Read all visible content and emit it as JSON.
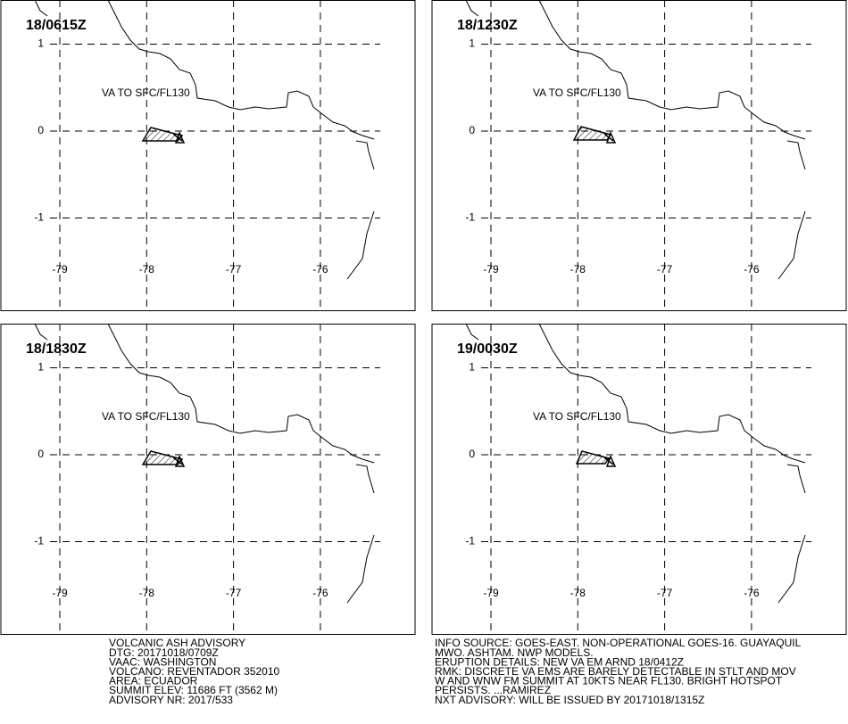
{
  "panels": [
    {
      "time": "18/0615Z",
      "annotation": "VA TO SFC/FL130",
      "lon_ticks": [
        -79,
        -78,
        -77,
        -76
      ],
      "lat_ticks": [
        1,
        0,
        -1
      ]
    },
    {
      "time": "18/1230Z",
      "annotation": "VA TO SFC/FL130",
      "lon_ticks": [
        -79,
        -78,
        -77,
        -76
      ],
      "lat_ticks": [
        1,
        0,
        -1
      ]
    },
    {
      "time": "18/1830Z",
      "annotation": "VA TO SFC/FL130",
      "lon_ticks": [
        -79,
        -78,
        -77,
        -76
      ],
      "lat_ticks": [
        1,
        0,
        -1
      ]
    },
    {
      "time": "19/0030Z",
      "annotation": "VA TO SFC/FL130",
      "lon_ticks": [
        -79,
        -78,
        -77,
        -76
      ],
      "lat_ticks": [
        1,
        0,
        -1
      ]
    }
  ],
  "advisory_left": [
    "VOLCANIC ASH ADVISORY",
    "DTG: 20171018/0709Z",
    "VAAC: WASHINGTON",
    "VOLCANO: REVENTADOR 352010",
    "AREA: ECUADOR",
    "SUMMIT ELEV: 11686 FT (3562 M)",
    "ADVISORY NR: 2017/533"
  ],
  "advisory_right": [
    "INFO SOURCE: GOES-EAST. NON-OPERATIONAL GOES-16. GUAYAQUIL",
    "MWO. ASHTAM. NWP MODELS.",
    "ERUPTION DETAILS: NEW VA EM ARND 18/0412Z",
    "RMK: DISCRETE VA EMS ARE BARELY DETECTABLE IN STLT AND MOV",
    "W AND WNW FM SUMMIT AT 10KTS NEAR FL130. BRIGHT HOTSPOT",
    "PERSISTS. ...RAMIREZ",
    "NXT ADVISORY: WILL BE ISSUED BY 20171018/1315Z"
  ]
}
